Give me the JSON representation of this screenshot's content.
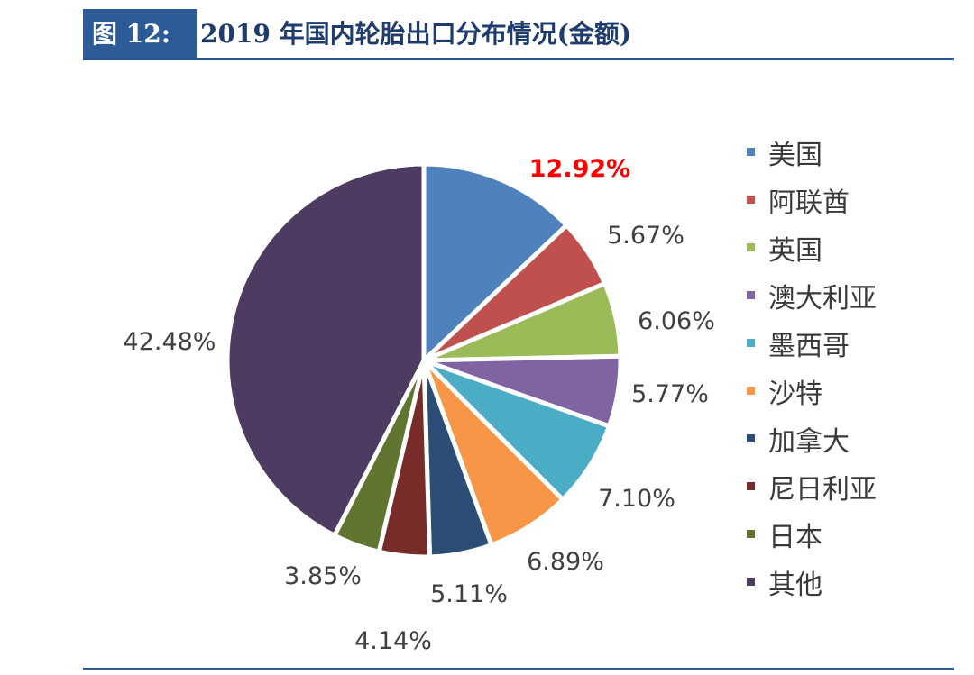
{
  "header": {
    "figure_label": "图 12:",
    "title": "2019 年国内轮胎出口分布情况(金额)"
  },
  "chart_data": {
    "type": "pie",
    "title": "2019 年国内轮胎出口分布情况(金额)",
    "categories": [
      "美国",
      "阿联酋",
      "英国",
      "澳大利亚",
      "墨西哥",
      "沙特",
      "加拿大",
      "尼日利亚",
      "日本",
      "其他"
    ],
    "values": [
      12.92,
      5.67,
      6.06,
      5.77,
      7.1,
      6.89,
      5.11,
      4.14,
      3.85,
      42.48
    ],
    "labels": [
      "12.92%",
      "5.67%",
      "6.06%",
      "5.77%",
      "7.10%",
      "6.89%",
      "5.11%",
      "4.14%",
      "3.85%",
      "42.48%"
    ],
    "colors": [
      "#4f81bd",
      "#c0504d",
      "#9bbb59",
      "#8064a2",
      "#4bacc6",
      "#f79646",
      "#2c4d75",
      "#772c2a",
      "#5f7530",
      "#4d3b62"
    ],
    "highlight_label_color": "#ff0000",
    "label_color": "#404040",
    "legend_position": "right",
    "start_angle": "12 o'clock, clockwise"
  }
}
